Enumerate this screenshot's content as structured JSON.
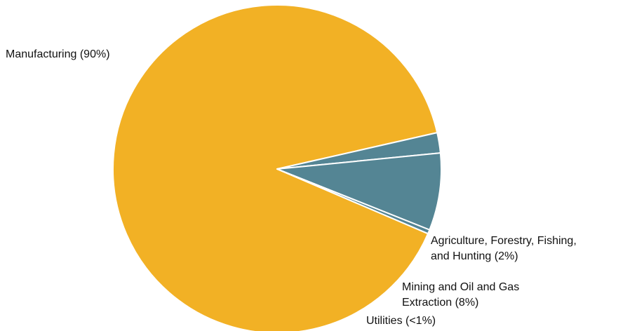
{
  "chart_data": {
    "type": "pie",
    "title": "",
    "slices": [
      {
        "label": "Manufacturing (90%)",
        "label_lines": [
          "Manufacturing (90%)"
        ],
        "value": 90.0,
        "color": "#F2B125"
      },
      {
        "label": "Agriculture, Forestry, Fishing, and Hunting (2%)",
        "label_lines": [
          "Agriculture, Forestry, Fishing,",
          "and Hunting (2%)"
        ],
        "value": 2.0,
        "color": "#548594"
      },
      {
        "label": "Mining and Oil and Gas Extraction (8%)",
        "label_lines": [
          "Mining and Oil and Gas",
          "Extraction (8%)"
        ],
        "value": 7.6,
        "color": "#548594"
      },
      {
        "label": "Utilities (<1%)",
        "label_lines": [
          "Utilities (<1%)"
        ],
        "value": 0.4,
        "color": "#548594"
      }
    ],
    "legend": "none"
  }
}
